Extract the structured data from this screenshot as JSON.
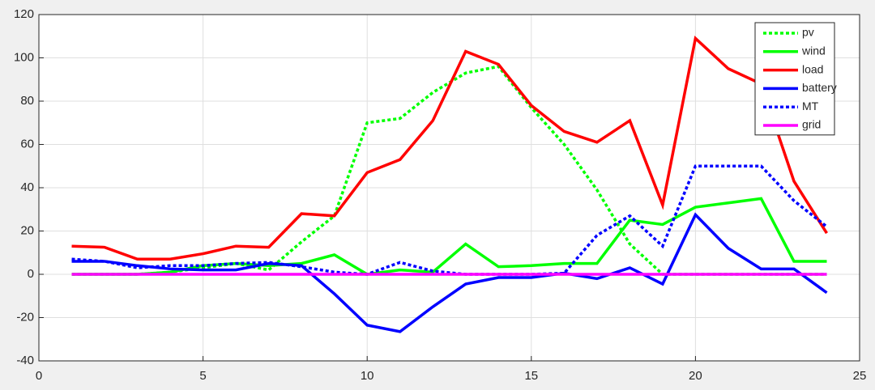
{
  "chart_data": {
    "type": "line",
    "x": [
      1,
      2,
      3,
      4,
      5,
      6,
      7,
      8,
      9,
      10,
      11,
      12,
      13,
      14,
      15,
      16,
      17,
      18,
      19,
      20,
      21,
      22,
      23,
      24
    ],
    "series": [
      {
        "name": "pv",
        "color": "#00ff00",
        "style": "dotted",
        "values": [
          0,
          0,
          0,
          1,
          3,
          5,
          2,
          15,
          27,
          70,
          72,
          84,
          93,
          96,
          77,
          60,
          39,
          14,
          0,
          0,
          0,
          0,
          0,
          0
        ]
      },
      {
        "name": "wind",
        "color": "#00ff00",
        "style": "solid",
        "values": [
          0,
          0,
          0,
          1,
          4,
          5,
          4,
          5,
          9,
          0,
          2,
          1,
          14,
          3.5,
          4,
          5,
          5,
          25,
          23,
          31,
          33,
          35,
          6,
          6
        ]
      },
      {
        "name": "load",
        "color": "#ff0000",
        "style": "solid",
        "values": [
          13,
          12.5,
          7,
          7,
          9.5,
          13,
          12.5,
          28,
          27,
          47,
          53,
          71,
          103,
          97,
          78,
          66,
          61,
          71,
          32,
          109,
          95,
          88,
          43,
          19
        ]
      },
      {
        "name": "battery",
        "color": "#0000ff",
        "style": "solid",
        "values": [
          6,
          6,
          4,
          2.5,
          2,
          2,
          5,
          4,
          -9,
          -23.5,
          -26.5,
          -15,
          -4.5,
          -1.5,
          -1.5,
          0.5,
          -2,
          3,
          -4.5,
          27.5,
          12,
          2.5,
          2.5,
          -8.5
        ]
      },
      {
        "name": "MT",
        "color": "#0000ff",
        "style": "dotted",
        "values": [
          7,
          6,
          3,
          4,
          4,
          5,
          5.5,
          3.5,
          1,
          0,
          5.5,
          1.5,
          0,
          0,
          0,
          0.5,
          18,
          27,
          13,
          50,
          50,
          50,
          34,
          22
        ]
      },
      {
        "name": "grid",
        "color": "#ff00ff",
        "style": "solid",
        "values": [
          0,
          0,
          0,
          0,
          0,
          0,
          0,
          0,
          0,
          0,
          0,
          0,
          0,
          0,
          0,
          0,
          0,
          0,
          0,
          0,
          0,
          0,
          0,
          0
        ]
      }
    ],
    "xlim": [
      0,
      25
    ],
    "xticks": [
      0,
      5,
      10,
      15,
      20,
      25
    ],
    "ylim": [
      -40,
      120
    ],
    "yticks": [
      -40,
      -20,
      0,
      20,
      40,
      60,
      80,
      100,
      120
    ],
    "grid": true,
    "legend": "northeast"
  }
}
